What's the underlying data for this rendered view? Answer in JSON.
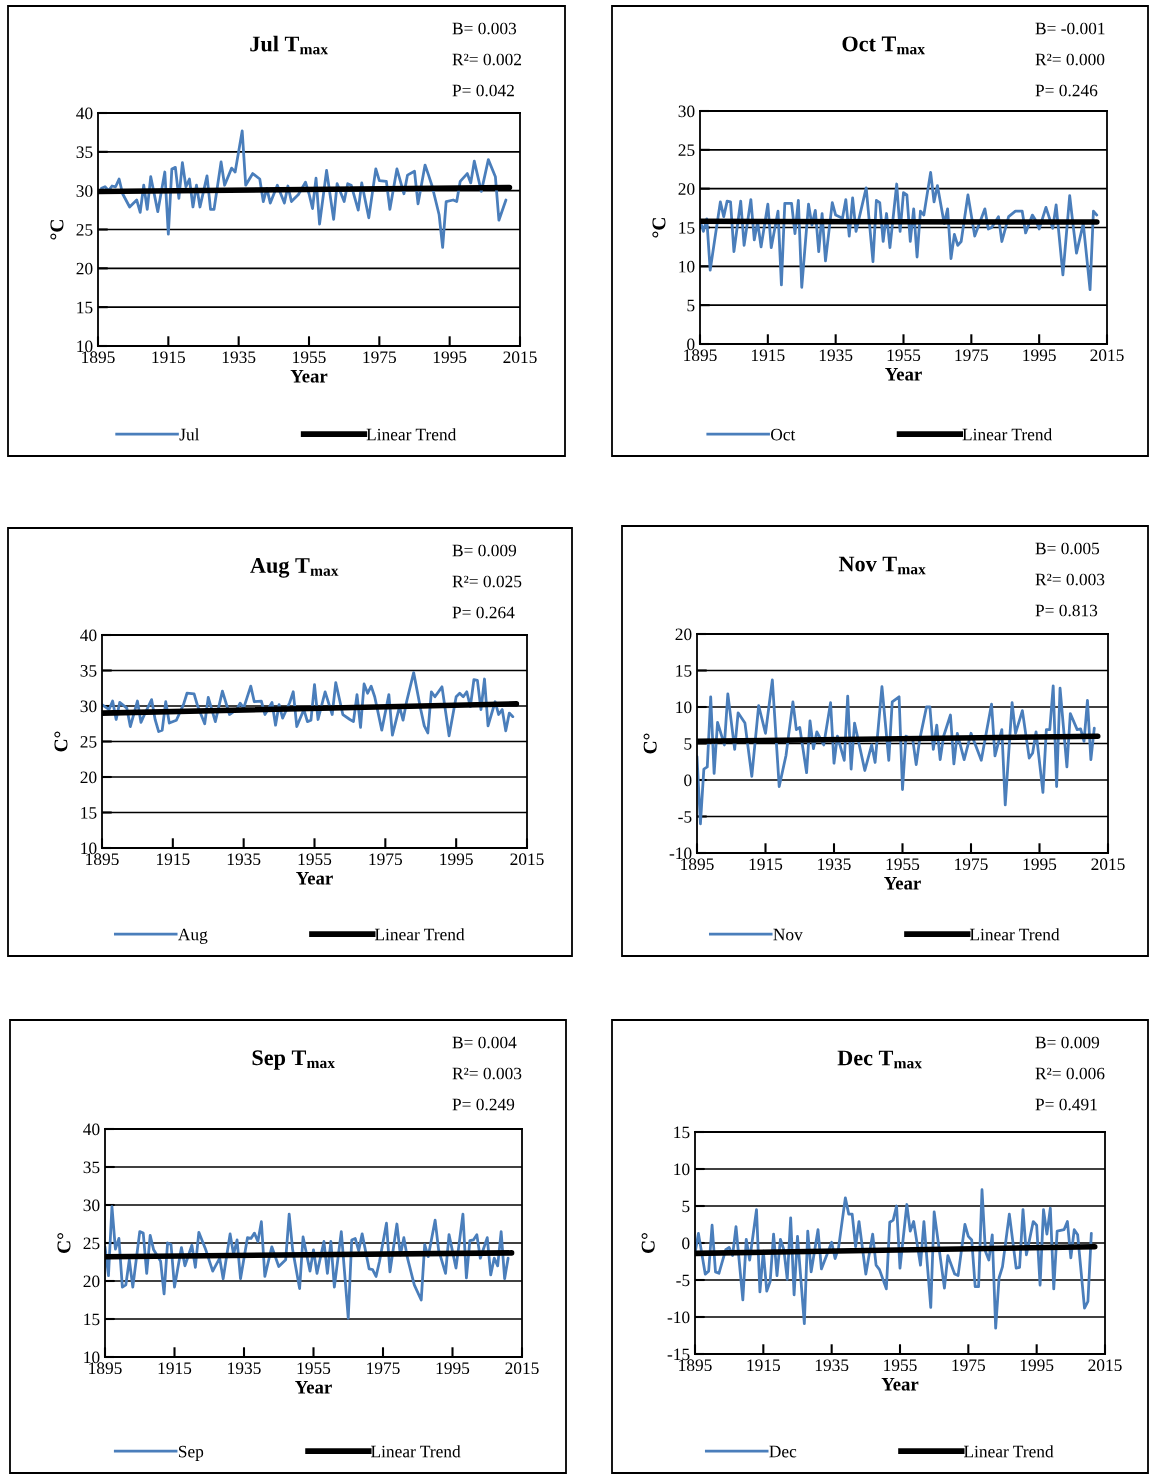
{
  "chart_data": [
    {
      "type": "line",
      "title": "Jul T$_{max}$",
      "xlabel": "Year",
      "ylabel": "°C",
      "annotations": [
        "B= 0.003",
        "R²= 0.002",
        "P= 0.042"
      ],
      "xlim": [
        1895,
        2015
      ],
      "xticks": [
        1895,
        1915,
        1935,
        1955,
        1975,
        1995,
        2015
      ],
      "ylim": [
        10,
        40
      ],
      "yticks": [
        10,
        15,
        20,
        25,
        30,
        35,
        40
      ],
      "grid": "y",
      "legend": "bottom",
      "series": [
        {
          "name": "Jul",
          "color": "#4a7ebb",
          "x": [
            1896,
            1897,
            1898,
            1899,
            1900,
            1901,
            1902,
            1904,
            1906,
            1907,
            1908,
            1909,
            1910,
            1912,
            1914,
            1915,
            1916,
            1917,
            1918,
            1919,
            1920,
            1921,
            1922,
            1923,
            1924,
            1926,
            1927,
            1928,
            1930,
            1931,
            1933,
            1934,
            1936,
            1937,
            1939,
            1941,
            1942,
            1943,
            1944,
            1946,
            1948,
            1949,
            1950,
            1952,
            1954,
            1955,
            1956,
            1957,
            1958,
            1960,
            1962,
            1963,
            1965,
            1966,
            1967,
            1969,
            1970,
            1972,
            1974,
            1975,
            1977,
            1978,
            1980,
            1982,
            1983,
            1985,
            1986,
            1988,
            1989,
            1990,
            1992,
            1993,
            1994,
            1996,
            1997,
            1998,
            2000,
            2001,
            2002,
            2004,
            2006,
            2008,
            2009,
            2011
          ],
          "values": [
            30.3,
            30.5,
            30.0,
            30.6,
            30.5,
            31.5,
            29.6,
            27.9,
            28.8,
            27.2,
            30.7,
            27.6,
            31.8,
            27.3,
            32.4,
            24.4,
            32.8,
            33.0,
            29.0,
            33.6,
            30.5,
            31.5,
            27.9,
            30.7,
            27.9,
            31.9,
            27.6,
            27.6,
            33.7,
            30.7,
            32.9,
            32.4,
            37.7,
            30.7,
            32.2,
            31.5,
            28.6,
            30.3,
            28.4,
            30.7,
            28.4,
            30.6,
            28.6,
            29.5,
            31.1,
            29.6,
            27.7,
            31.6,
            25.7,
            32.6,
            26.3,
            30.9,
            28.6,
            30.9,
            30.7,
            27.5,
            31.0,
            26.5,
            32.8,
            31.3,
            31.2,
            27.6,
            32.8,
            29.6,
            32.0,
            32.5,
            28.3,
            33.3,
            32.0,
            30.6,
            26.9,
            22.7,
            28.6,
            28.8,
            28.6,
            31.2,
            32.2,
            31.0,
            33.8,
            29.9,
            34.0,
            31.8,
            26.2,
            28.8
          ]
        },
        {
          "name": "Linear Trend",
          "color": "#000000",
          "x": [
            1895,
            2012
          ],
          "values": [
            29.9,
            30.4
          ]
        }
      ]
    },
    {
      "type": "line",
      "title": "Oct T$_{max}$",
      "xlabel": "Year",
      "ylabel": "°C",
      "annotations": [
        "B= -0.001",
        "R²= 0.000",
        "P= 0.246"
      ],
      "xlim": [
        1895,
        2015
      ],
      "xticks": [
        1895,
        1915,
        1935,
        1955,
        1975,
        1995,
        2015
      ],
      "ylim": [
        0,
        30
      ],
      "yticks": [
        0,
        5,
        10,
        15,
        20,
        25,
        30
      ],
      "grid": "y",
      "legend": "bottom",
      "series": [
        {
          "name": "Oct",
          "color": "#4a7ebb",
          "x": [
            1895,
            1896,
            1897,
            1898,
            1901,
            1902,
            1903,
            1904,
            1905,
            1907,
            1908,
            1910,
            1911,
            1912,
            1913,
            1915,
            1916,
            1918,
            1919,
            1920,
            1922,
            1923,
            1924,
            1925,
            1927,
            1928,
            1929,
            1930,
            1931,
            1932,
            1934,
            1935,
            1937,
            1938,
            1939,
            1940,
            1941,
            1944,
            1946,
            1947,
            1948,
            1949,
            1950,
            1951,
            1953,
            1954,
            1955,
            1956,
            1957,
            1958,
            1959,
            1960,
            1961,
            1963,
            1964,
            1965,
            1967,
            1968,
            1969,
            1970,
            1971,
            1972,
            1974,
            1976,
            1979,
            1980,
            1981,
            1983,
            1984,
            1986,
            1988,
            1990,
            1991,
            1993,
            1994,
            1995,
            1997,
            1999,
            2000,
            2002,
            2004,
            2005,
            2006,
            2008,
            2010,
            2011,
            2012
          ],
          "values": [
            15.9,
            14.5,
            16.1,
            9.5,
            18.3,
            16.4,
            18.4,
            18.3,
            11.9,
            18.4,
            12.7,
            18.6,
            13.4,
            15.7,
            12.5,
            18.0,
            12.4,
            17.1,
            7.6,
            18.1,
            18.1,
            14.2,
            18.5,
            7.3,
            18.0,
            15.3,
            17.2,
            11.9,
            16.8,
            10.7,
            18.2,
            16.6,
            16.2,
            18.6,
            13.9,
            18.8,
            14.5,
            20.1,
            10.6,
            18.5,
            18.2,
            13.2,
            16.8,
            12.4,
            20.6,
            14.5,
            19.5,
            19.2,
            13.2,
            17.4,
            11.2,
            17.1,
            16.6,
            22.1,
            18.3,
            20.4,
            15.5,
            17.4,
            11.0,
            14.1,
            12.7,
            13.2,
            19.2,
            13.9,
            17.4,
            14.8,
            15.0,
            16.4,
            13.2,
            16.4,
            17.1,
            17.1,
            14.3,
            16.6,
            15.9,
            14.8,
            17.6,
            14.9,
            17.9,
            8.9,
            19.1,
            15.3,
            11.7,
            15.5,
            7.0,
            17.1,
            16.6
          ]
        },
        {
          "name": "Linear Trend",
          "color": "#000000",
          "x": [
            1895,
            2012
          ],
          "values": [
            15.8,
            15.7
          ]
        }
      ]
    },
    {
      "type": "line",
      "title": "Aug T$_{max}$",
      "xlabel": "Year",
      "ylabel": "C°",
      "annotations": [
        "B= 0.009",
        "R²= 0.025",
        "P= 0.264"
      ],
      "xlim": [
        1895,
        2015
      ],
      "xticks": [
        1895,
        1915,
        1935,
        1955,
        1975,
        1995,
        2015
      ],
      "ylim": [
        10,
        40
      ],
      "yticks": [
        10,
        15,
        20,
        25,
        30,
        35,
        40
      ],
      "grid": "y",
      "legend": "bottom",
      "series": [
        {
          "name": "Aug",
          "color": "#4a7ebb",
          "x": [
            1895,
            1897,
            1898,
            1899,
            1900,
            1902,
            1903,
            1905,
            1906,
            1907,
            1909,
            1910,
            1911,
            1912,
            1913,
            1914,
            1916,
            1918,
            1919,
            1921,
            1922,
            1924,
            1925,
            1927,
            1929,
            1931,
            1933,
            1934,
            1935,
            1937,
            1938,
            1940,
            1941,
            1943,
            1944,
            1945,
            1946,
            1948,
            1949,
            1950,
            1952,
            1953,
            1954,
            1955,
            1956,
            1958,
            1960,
            1961,
            1963,
            1965,
            1966,
            1967,
            1968,
            1969,
            1970,
            1971,
            1972,
            1974,
            1976,
            1977,
            1979,
            1980,
            1981,
            1983,
            1985,
            1986,
            1987,
            1988,
            1989,
            1991,
            1993,
            1995,
            1996,
            1997,
            1998,
            1999,
            2000,
            2001,
            2002,
            2003,
            2004,
            2006,
            2007,
            2008,
            2009,
            2010,
            2011
          ],
          "values": [
            30.2,
            29.5,
            30.7,
            28.1,
            30.5,
            29.7,
            27.1,
            30.7,
            27.7,
            28.8,
            30.9,
            28.1,
            26.4,
            26.6,
            30.6,
            27.6,
            28.0,
            30.2,
            31.8,
            31.7,
            30.0,
            27.5,
            31.2,
            27.8,
            32.1,
            28.8,
            29.5,
            30.4,
            29.7,
            32.8,
            30.6,
            30.7,
            28.8,
            30.5,
            27.3,
            30.2,
            28.3,
            30.5,
            32.0,
            27.1,
            29.5,
            27.8,
            28.0,
            33.0,
            28.1,
            32.0,
            28.8,
            33.3,
            28.8,
            28.1,
            27.8,
            31.6,
            27.0,
            33.1,
            31.8,
            32.8,
            31.3,
            26.6,
            31.6,
            25.9,
            29.9,
            28.0,
            30.6,
            34.7,
            29.5,
            27.2,
            26.2,
            32.0,
            31.3,
            32.7,
            25.8,
            31.3,
            31.8,
            31.3,
            32.0,
            29.9,
            33.7,
            33.6,
            29.5,
            33.8,
            27.2,
            30.6,
            28.8,
            29.5,
            26.5,
            29.0,
            28.5
          ]
        },
        {
          "name": "Linear Trend",
          "color": "#000000",
          "x": [
            1895,
            2012
          ],
          "values": [
            29.0,
            30.3
          ]
        }
      ]
    },
    {
      "type": "line",
      "title": "Nov T$_{max}$",
      "xlabel": "Year",
      "ylabel": "C°",
      "annotations": [
        "B= 0.005",
        "R²= 0.003",
        "P= 0.813"
      ],
      "xlim": [
        1895,
        2015
      ],
      "xticks": [
        1895,
        1915,
        1935,
        1955,
        1975,
        1995,
        2015
      ],
      "ylim": [
        -10,
        20
      ],
      "yticks": [
        -10,
        -5,
        0,
        5,
        10,
        15,
        20
      ],
      "grid": "y",
      "legend": "bottom",
      "series": [
        {
          "name": "Nov",
          "color": "#4a7ebb",
          "x": [
            1895,
            1896,
            1897,
            1898,
            1899,
            1900,
            1901,
            1903,
            1904,
            1906,
            1907,
            1909,
            1911,
            1913,
            1915,
            1917,
            1919,
            1921,
            1923,
            1924,
            1925,
            1927,
            1928,
            1929,
            1930,
            1932,
            1934,
            1935,
            1936,
            1938,
            1939,
            1940,
            1941,
            1944,
            1946,
            1947,
            1949,
            1951,
            1952,
            1954,
            1955,
            1956,
            1958,
            1959,
            1960,
            1962,
            1963,
            1964,
            1965,
            1966,
            1967,
            1969,
            1970,
            1971,
            1973,
            1975,
            1978,
            1981,
            1982,
            1984,
            1985,
            1987,
            1988,
            1990,
            1992,
            1993,
            1994,
            1996,
            1997,
            1998,
            1999,
            2000,
            2001,
            2003,
            2004,
            2006,
            2007,
            2008,
            2009,
            2010,
            2011
          ],
          "values": [
            3.2,
            -6.0,
            1.5,
            1.8,
            11.4,
            0.9,
            7.9,
            4.8,
            11.8,
            4.2,
            9.2,
            7.8,
            0.5,
            10.2,
            6.4,
            13.7,
            -0.9,
            3.4,
            10.7,
            6.9,
            7.2,
            1.0,
            8.1,
            4.3,
            6.6,
            4.8,
            10.6,
            2.3,
            6.0,
            2.7,
            11.5,
            1.5,
            7.8,
            1.3,
            4.8,
            2.4,
            12.8,
            2.7,
            10.7,
            11.4,
            -1.3,
            6.0,
            5.5,
            2.1,
            5.5,
            10.0,
            10.0,
            4.2,
            7.5,
            2.8,
            6.0,
            8.9,
            2.2,
            6.4,
            2.8,
            6.4,
            2.7,
            10.4,
            3.3,
            6.9,
            -3.4,
            10.6,
            6.4,
            9.5,
            3.0,
            3.7,
            6.6,
            -1.7,
            6.9,
            6.9,
            12.9,
            -0.9,
            12.6,
            1.8,
            9.1,
            6.9,
            7.0,
            5.3,
            10.9,
            2.8,
            7.1
          ]
        },
        {
          "name": "Linear Trend",
          "color": "#000000",
          "x": [
            1895,
            2012
          ],
          "values": [
            5.3,
            6.0
          ]
        }
      ]
    },
    {
      "type": "line",
      "title": "Sep T$_{max}$",
      "xlabel": "Year",
      "ylabel": "C°",
      "annotations": [
        "B= 0.004",
        "R²= 0.003",
        "P= 0.249"
      ],
      "xlim": [
        1895,
        2015
      ],
      "xticks": [
        1895,
        1915,
        1935,
        1955,
        1975,
        1995,
        2015
      ],
      "ylim": [
        10,
        40
      ],
      "yticks": [
        10,
        15,
        20,
        25,
        30,
        35,
        40
      ],
      "grid": "y",
      "legend": "bottom",
      "series": [
        {
          "name": "Sep",
          "color": "#4a7ebb",
          "x": [
            1895,
            1896,
            1897,
            1898,
            1899,
            1900,
            1901,
            1902,
            1903,
            1905,
            1906,
            1907,
            1908,
            1909,
            1911,
            1912,
            1913,
            1914,
            1915,
            1917,
            1918,
            1920,
            1921,
            1922,
            1924,
            1926,
            1928,
            1929,
            1931,
            1932,
            1933,
            1934,
            1936,
            1937,
            1938,
            1939,
            1940,
            1941,
            1943,
            1945,
            1947,
            1948,
            1949,
            1951,
            1952,
            1954,
            1955,
            1956,
            1958,
            1959,
            1960,
            1961,
            1963,
            1965,
            1966,
            1967,
            1968,
            1969,
            1971,
            1972,
            1973,
            1974,
            1976,
            1977,
            1979,
            1980,
            1981,
            1982,
            1984,
            1986,
            1987,
            1988,
            1990,
            1991,
            1993,
            1994,
            1996,
            1998,
            1999,
            2000,
            2001,
            2002,
            2003,
            2005,
            2006,
            2007,
            2008,
            2009,
            2010,
            2011
          ],
          "values": [
            24.5,
            20.7,
            29.8,
            24.2,
            25.6,
            19.2,
            19.5,
            22.8,
            19.2,
            26.5,
            26.3,
            21.0,
            26.0,
            24.1,
            22.6,
            18.3,
            25.0,
            24.8,
            19.2,
            24.4,
            22.0,
            24.7,
            21.8,
            26.4,
            24.1,
            21.3,
            23.0,
            20.3,
            26.2,
            23.5,
            25.4,
            20.3,
            25.7,
            25.6,
            26.3,
            25.2,
            27.8,
            20.6,
            24.5,
            21.9,
            22.8,
            28.8,
            24.1,
            19.0,
            25.8,
            21.3,
            24.1,
            21.0,
            25.2,
            21.0,
            25.2,
            19.2,
            26.5,
            15.1,
            25.4,
            25.6,
            24.0,
            26.2,
            21.6,
            21.5,
            20.6,
            22.6,
            27.6,
            21.2,
            27.5,
            23.4,
            25.7,
            23.1,
            19.5,
            17.5,
            24.8,
            23.2,
            28.0,
            24.1,
            21.0,
            26.1,
            21.7,
            28.8,
            20.4,
            25.3,
            25.4,
            26.1,
            23.0,
            25.7,
            20.8,
            23.0,
            22.0,
            26.5,
            20.3,
            23.0
          ]
        },
        {
          "name": "Linear Trend",
          "color": "#000000",
          "x": [
            1895,
            2012
          ],
          "values": [
            23.2,
            23.7
          ]
        }
      ]
    },
    {
      "type": "line",
      "title": "Dec T$_{max}$",
      "xlabel": "Year",
      "ylabel": "C°",
      "annotations": [
        "B= 0.009",
        "R²= 0.006",
        "P= 0.491"
      ],
      "xlim": [
        1895,
        2015
      ],
      "xticks": [
        1895,
        1915,
        1935,
        1955,
        1975,
        1995,
        2015
      ],
      "ylim": [
        -15,
        15
      ],
      "yticks": [
        -15,
        -10,
        -5,
        0,
        5,
        10,
        15
      ],
      "grid": "y",
      "legend": "bottom",
      "series": [
        {
          "name": "Dec",
          "color": "#4a7ebb",
          "x": [
            1895,
            1896,
            1898,
            1899,
            1900,
            1901,
            1902,
            1904,
            1905,
            1906,
            1907,
            1909,
            1910,
            1911,
            1913,
            1914,
            1915,
            1916,
            1917,
            1918,
            1919,
            1920,
            1921,
            1922,
            1923,
            1924,
            1925,
            1927,
            1928,
            1929,
            1931,
            1932,
            1935,
            1936,
            1937,
            1939,
            1940,
            1941,
            1942,
            1943,
            1945,
            1947,
            1948,
            1949,
            1951,
            1952,
            1953,
            1954,
            1955,
            1957,
            1958,
            1959,
            1961,
            1962,
            1964,
            1965,
            1968,
            1969,
            1971,
            1972,
            1974,
            1975,
            1976,
            1977,
            1978,
            1979,
            1980,
            1981,
            1982,
            1983,
            1984,
            1985,
            1987,
            1989,
            1990,
            1991,
            1992,
            1994,
            1995,
            1996,
            1997,
            1998,
            1999,
            2000,
            2001,
            2003,
            2004,
            2005,
            2006,
            2007,
            2009,
            2010,
            2011
          ],
          "values": [
            -1.4,
            1.3,
            -4.2,
            -3.8,
            2.4,
            -3.9,
            -4.1,
            -0.9,
            -0.6,
            -1.7,
            2.2,
            -7.7,
            0.5,
            -2.3,
            4.5,
            -6.6,
            -1.1,
            -6.5,
            -5.2,
            1.2,
            -4.4,
            0.5,
            -0.9,
            -4.9,
            3.4,
            -7.0,
            0.9,
            -10.9,
            1.6,
            -3.9,
            1.8,
            -3.5,
            0.1,
            -2.1,
            -0.7,
            6.1,
            3.9,
            3.9,
            -0.5,
            2.9,
            -4.2,
            1.2,
            -3.0,
            -3.6,
            -6.2,
            2.8,
            3.1,
            5.0,
            -3.4,
            5.2,
            1.6,
            2.9,
            -3.0,
            2.9,
            -8.7,
            4.2,
            -6.1,
            -1.7,
            -4.2,
            -4.4,
            2.5,
            0.9,
            0.4,
            -5.9,
            -5.9,
            7.2,
            -1.1,
            -2.3,
            1.1,
            -11.5,
            -4.7,
            -3.2,
            3.9,
            -3.4,
            -3.3,
            4.5,
            -1.6,
            2.9,
            2.4,
            -5.7,
            4.5,
            1.2,
            4.7,
            -6.2,
            1.6,
            1.8,
            2.9,
            -2.0,
            1.8,
            1.1,
            -8.8,
            -7.9,
            1.3
          ]
        },
        {
          "name": "Linear Trend",
          "color": "#000000",
          "x": [
            1895,
            2012
          ],
          "values": [
            -1.4,
            -0.5
          ]
        }
      ]
    }
  ]
}
